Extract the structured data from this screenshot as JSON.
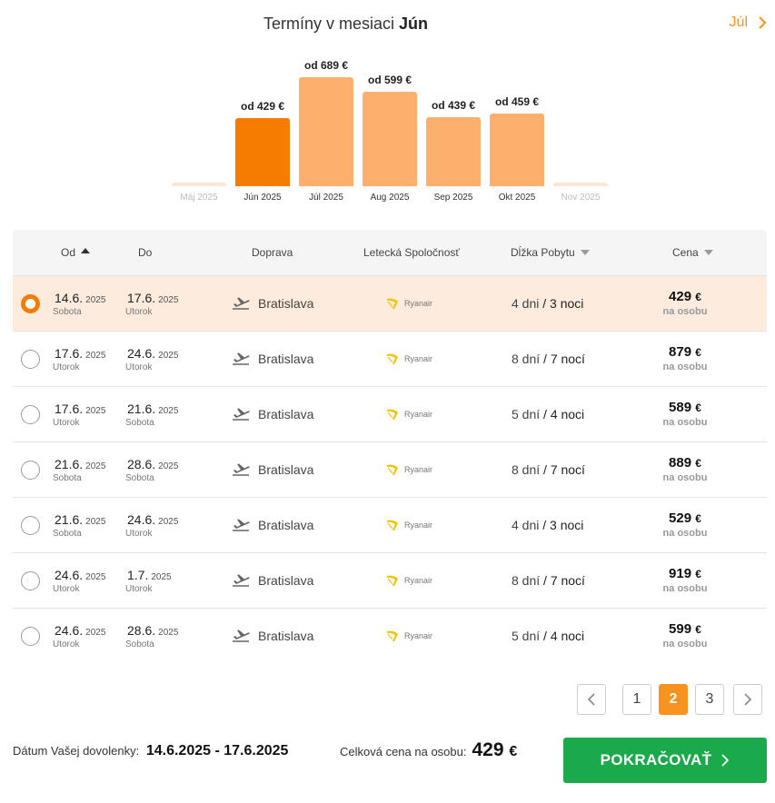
{
  "header": {
    "title_prefix": "Termíny v mesiaci",
    "current_month": "Jún",
    "next_month": "Júl"
  },
  "chart_data": {
    "type": "bar",
    "categories": [
      "Máj 2025",
      "Jún 2025",
      "Júl 2025",
      "Aug 2025",
      "Sep 2025",
      "Okt 2025",
      "Nov 2025"
    ],
    "values": [
      null,
      429,
      689,
      599,
      439,
      459,
      null
    ],
    "labels": [
      "",
      "od 429 €",
      "od 689 €",
      "od 599 €",
      "od 439 €",
      "od 459 €",
      ""
    ],
    "selected": "Jún 2025",
    "colors": {
      "selected": "#f57c00",
      "normal": "#fdb06e",
      "empty": "#fde6d2"
    }
  },
  "table": {
    "headers": {
      "od": "Od",
      "do": "Do",
      "doprava": "Doprava",
      "spolocnost": "Letecká Spoločnosť",
      "dlzka": "Dĺžka Pobytu",
      "cena": "Cena"
    },
    "rows": [
      {
        "from_date": "14.6.",
        "from_year": "2025",
        "from_day": "Sobota",
        "to_date": "17.6.",
        "to_year": "2025",
        "to_day": "Utorok",
        "origin": "Bratislava",
        "airline": "Ryanair",
        "days": "4 dni",
        "nights": "3 noci",
        "price": "429",
        "currency": "€",
        "per": "na osobu",
        "selected": true
      },
      {
        "from_date": "17.6.",
        "from_year": "2025",
        "from_day": "Utorok",
        "to_date": "24.6.",
        "to_year": "2025",
        "to_day": "Utorok",
        "origin": "Bratislava",
        "airline": "Ryanair",
        "days": "8 dní",
        "nights": "7 nocí",
        "price": "879",
        "currency": "€",
        "per": "na osobu",
        "selected": false
      },
      {
        "from_date": "17.6.",
        "from_year": "2025",
        "from_day": "Utorok",
        "to_date": "21.6.",
        "to_year": "2025",
        "to_day": "Sobota",
        "origin": "Bratislava",
        "airline": "Ryanair",
        "days": "5 dní",
        "nights": "4 noci",
        "price": "589",
        "currency": "€",
        "per": "na osobu",
        "selected": false
      },
      {
        "from_date": "21.6.",
        "from_year": "2025",
        "from_day": "Sobota",
        "to_date": "28.6.",
        "to_year": "2025",
        "to_day": "Sobota",
        "origin": "Bratislava",
        "airline": "Ryanair",
        "days": "8 dní",
        "nights": "7 nocí",
        "price": "889",
        "currency": "€",
        "per": "na osobu",
        "selected": false
      },
      {
        "from_date": "21.6.",
        "from_year": "2025",
        "from_day": "Sobota",
        "to_date": "24.6.",
        "to_year": "2025",
        "to_day": "Utorok",
        "origin": "Bratislava",
        "airline": "Ryanair",
        "days": "4 dni",
        "nights": "3 noci",
        "price": "529",
        "currency": "€",
        "per": "na osobu",
        "selected": false
      },
      {
        "from_date": "24.6.",
        "from_year": "2025",
        "from_day": "Utorok",
        "to_date": "1.7.",
        "to_year": "2025",
        "to_day": "Utorok",
        "origin": "Bratislava",
        "airline": "Ryanair",
        "days": "8 dní",
        "nights": "7 nocí",
        "price": "919",
        "currency": "€",
        "per": "na osobu",
        "selected": false
      },
      {
        "from_date": "24.6.",
        "from_year": "2025",
        "from_day": "Utorok",
        "to_date": "28.6.",
        "to_year": "2025",
        "to_day": "Sobota",
        "origin": "Bratislava",
        "airline": "Ryanair",
        "days": "5 dní",
        "nights": "4 noci",
        "price": "599",
        "currency": "€",
        "per": "na osobu",
        "selected": false
      }
    ]
  },
  "pagination": {
    "pages": [
      "1",
      "2",
      "3"
    ],
    "current": "2"
  },
  "footer": {
    "date_label": "Dátum Vašej dovolenky:",
    "date_value": "14.6.2025 - 17.6.2025",
    "total_label": "Celková cena na osobu:",
    "total_value": "429",
    "total_currency": "€",
    "continue_label": "POKRAČOVAŤ"
  }
}
